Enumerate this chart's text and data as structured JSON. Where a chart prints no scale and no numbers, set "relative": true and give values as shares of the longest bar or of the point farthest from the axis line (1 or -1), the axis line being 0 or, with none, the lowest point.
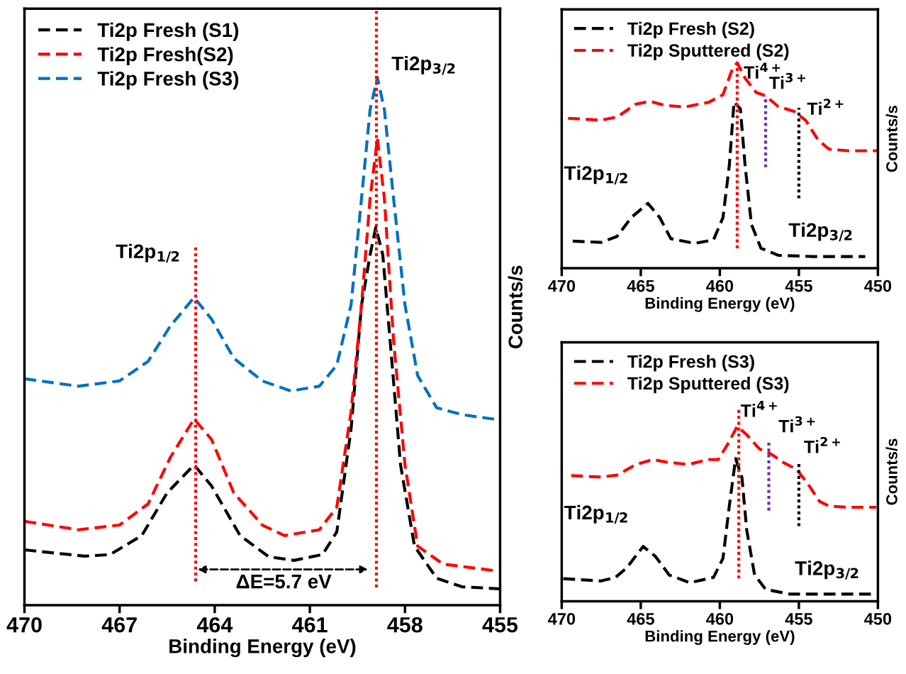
{
  "chart_data": [
    {
      "type": "line",
      "relative": true,
      "xlabel": "Binding Energy (eV)",
      "ylabel": "Counts/s",
      "xlim": [
        470,
        455
      ],
      "xticks": [
        470,
        467,
        464,
        461,
        458,
        455
      ],
      "legend": "top left",
      "line_style": "dashed",
      "series": [
        {
          "name": "Ti2p Fresh (S1)",
          "color": "#000000",
          "x": [
            470,
            468.1,
            467.3,
            466.3,
            465.5,
            464.65,
            464.1,
            463.2,
            462.3,
            461.5,
            460.6,
            460.15,
            459.7,
            459.37,
            459.1,
            458.92,
            458.7,
            458.47,
            458.14,
            457.7,
            457.0,
            456.2,
            455.0
          ],
          "values": [
            0.105,
            0.093,
            0.096,
            0.132,
            0.213,
            0.266,
            0.226,
            0.132,
            0.092,
            0.085,
            0.096,
            0.139,
            0.334,
            0.569,
            0.664,
            0.716,
            0.664,
            0.502,
            0.266,
            0.112,
            0.051,
            0.035,
            0.031
          ]
        },
        {
          "name": "Ti2p Fresh(S2)",
          "color": "#ff0000",
          "x": [
            470,
            468.3,
            467.0,
            466.1,
            465.4,
            464.65,
            464.1,
            463.4,
            462.5,
            461.8,
            460.7,
            460.15,
            459.7,
            459.37,
            459.1,
            458.87,
            458.65,
            458.36,
            458.0,
            457.6,
            456.8,
            455.1
          ],
          "values": [
            0.159,
            0.143,
            0.152,
            0.192,
            0.28,
            0.353,
            0.314,
            0.213,
            0.152,
            0.132,
            0.143,
            0.186,
            0.367,
            0.569,
            0.771,
            0.884,
            0.771,
            0.502,
            0.266,
            0.112,
            0.078,
            0.065
          ]
        },
        {
          "name": "Ti2p Fresh (S3)",
          "color": "#0070c0",
          "x": [
            470,
            468.3,
            467.0,
            466.1,
            465.4,
            464.65,
            464.1,
            463.4,
            462.5,
            461.6,
            460.7,
            460.15,
            459.7,
            459.37,
            459.1,
            458.87,
            458.65,
            458.36,
            458.0,
            457.6,
            457.0,
            456.2,
            455.0
          ],
          "values": [
            0.429,
            0.415,
            0.425,
            0.462,
            0.529,
            0.583,
            0.542,
            0.468,
            0.425,
            0.406,
            0.415,
            0.455,
            0.569,
            0.771,
            0.939,
            1.0,
            0.939,
            0.771,
            0.569,
            0.435,
            0.374,
            0.361,
            0.351
          ]
        }
      ],
      "ref_lines": [
        {
          "axis": "x",
          "value": 464.6,
          "color": "#ff0000",
          "line_style": "dotted"
        },
        {
          "axis": "x",
          "value": 458.9,
          "color": "#ff0000",
          "line_style": "dotted"
        }
      ],
      "annotations": [
        "Ti2p$_{1/2}$",
        "Ti2p$_{3/2}$",
        "ΔE=5.7 eV"
      ]
    },
    {
      "type": "line",
      "relative": true,
      "xlabel": "Binding Energy (eV)",
      "ylabel": "Counts/s",
      "xlim": [
        470,
        450
      ],
      "xticks": [
        470,
        465,
        460,
        455,
        450
      ],
      "legend": "top left",
      "line_style": "dashed",
      "series": [
        {
          "name": "Ti2p Fresh (S2)",
          "color": "#000000",
          "x": [
            469.3,
            467.5,
            466.5,
            465.6,
            464.55,
            463.8,
            463.1,
            461.6,
            460.4,
            459.8,
            459.4,
            459.1,
            458.7,
            458.4,
            458.0,
            457.4,
            456.3,
            454.1,
            450.8
          ],
          "values": [
            0.132,
            0.126,
            0.155,
            0.247,
            0.316,
            0.247,
            0.144,
            0.121,
            0.138,
            0.247,
            0.5,
            0.81,
            0.776,
            0.5,
            0.213,
            0.098,
            0.063,
            0.057,
            0.057
          ]
        },
        {
          "name": "Ti2p Sputtered (S2)",
          "color": "#ff0000",
          "x": [
            469.6,
            467.5,
            466.5,
            465.3,
            464.4,
            463.5,
            462.2,
            460.7,
            459.8,
            459.2,
            458.9,
            458.4,
            457.7,
            457.1,
            456.3,
            455.3,
            454.55,
            453.8,
            453.1,
            451.9,
            450.0
          ],
          "values": [
            0.73,
            0.721,
            0.736,
            0.799,
            0.813,
            0.793,
            0.785,
            0.808,
            0.845,
            0.971,
            1.0,
            0.925,
            0.856,
            0.839,
            0.787,
            0.764,
            0.718,
            0.626,
            0.58,
            0.572,
            0.572
          ]
        }
      ],
      "ref_lines": [
        {
          "axis": "x",
          "value": 458.9,
          "color": "#ff0000",
          "line_style": "dotted",
          "label": "Ti$^{4+}$"
        },
        {
          "axis": "x",
          "value": 457.1,
          "color": "#7030a0",
          "line_style": "dotted",
          "label": "Ti$^{3+}$"
        },
        {
          "axis": "x",
          "value": 455.0,
          "color": "#000000",
          "line_style": "dotted",
          "label": "Ti$^{2+}$"
        }
      ],
      "annotations": [
        "Ti2p$_{1/2}$",
        "Ti2p$_{3/2}$"
      ]
    },
    {
      "type": "line",
      "relative": true,
      "xlabel": "Binding Energy (eV)",
      "ylabel": "Counts/s",
      "xlim": [
        470,
        450
      ],
      "xticks": [
        470,
        465,
        460,
        455,
        450
      ],
      "legend": "top left",
      "line_style": "dashed",
      "series": [
        {
          "name": "Ti2p Fresh (S3)",
          "color": "#000000",
          "x": [
            469.9,
            467.5,
            466.6,
            465.9,
            464.85,
            464.1,
            463.2,
            461.9,
            460.4,
            459.8,
            459.4,
            459.0,
            458.6,
            458.3,
            457.8,
            457.1,
            455.6,
            450.4
          ],
          "values": [
            0.129,
            0.116,
            0.136,
            0.19,
            0.313,
            0.259,
            0.15,
            0.106,
            0.136,
            0.245,
            0.544,
            0.816,
            0.707,
            0.408,
            0.15,
            0.068,
            0.041,
            0.041
          ]
        },
        {
          "name": "Ti2p Sputtered (S3)",
          "color": "#ff0000",
          "x": [
            469.4,
            467.5,
            466.5,
            465.3,
            464.25,
            463.4,
            462.0,
            460.7,
            460.1,
            459.5,
            458.9,
            458.3,
            457.5,
            456.8,
            455.9,
            455.15,
            454.4,
            453.7,
            453.1,
            451.9,
            450.1
          ],
          "values": [
            0.718,
            0.71,
            0.721,
            0.782,
            0.81,
            0.796,
            0.782,
            0.81,
            0.81,
            0.898,
            1.0,
            0.952,
            0.871,
            0.844,
            0.789,
            0.755,
            0.667,
            0.571,
            0.544,
            0.537,
            0.537
          ]
        }
      ],
      "ref_lines": [
        {
          "axis": "x",
          "value": 458.8,
          "color": "#ff0000",
          "line_style": "dotted",
          "label": "Ti$^{4+}$"
        },
        {
          "axis": "x",
          "value": 456.9,
          "color": "#7030a0",
          "line_style": "dotted",
          "label": "Ti$^{3+}$"
        },
        {
          "axis": "x",
          "value": 455.0,
          "color": "#000000",
          "line_style": "dotted",
          "label": "Ti$^{2+}$"
        }
      ],
      "annotations": [
        "Ti2p$_{1/2}$",
        "Ti2p$_{3/2}$"
      ]
    }
  ]
}
